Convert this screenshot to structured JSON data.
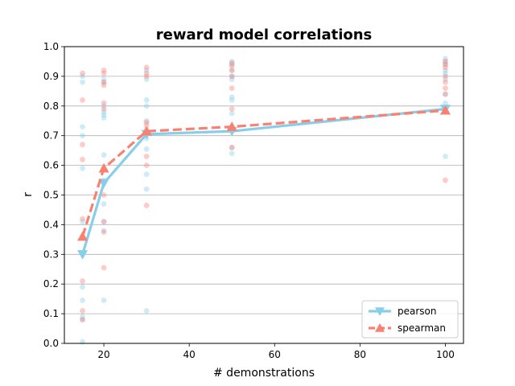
{
  "chart_data": {
    "type": "line",
    "title": "reward model correlations",
    "xlabel": "# demonstrations",
    "ylabel": "r",
    "xlim": [
      10.75,
      104.25
    ],
    "ylim": [
      0,
      1.0
    ],
    "xticks": [
      20,
      40,
      60,
      80,
      100
    ],
    "yticks": [
      0.0,
      0.1,
      0.2,
      0.3,
      0.4,
      0.5,
      0.6,
      0.7,
      0.8,
      0.9,
      1.0
    ],
    "grid": "y",
    "legend_position": "lower-right",
    "x": [
      15,
      20,
      30,
      50,
      100
    ],
    "series": [
      {
        "name": "pearson",
        "color": "#87ceeb",
        "linestyle": "solid",
        "marker": "triangle-down",
        "values": [
          0.3,
          0.54,
          0.705,
          0.715,
          0.79
        ],
        "scatter": [
          [
            15,
            [
              0.005,
              0.08,
              0.09,
              0.145,
              0.19,
              0.41,
              0.59,
              0.7,
              0.73,
              0.88,
              0.9
            ]
          ],
          [
            20,
            [
              0.145,
              0.38,
              0.41,
              0.47,
              0.55,
              0.635,
              0.76,
              0.77,
              0.78,
              0.8,
              0.88,
              0.89
            ]
          ],
          [
            30,
            [
              0.11,
              0.52,
              0.57,
              0.655,
              0.69,
              0.72,
              0.75,
              0.8,
              0.82,
              0.89,
              0.92
            ]
          ],
          [
            50,
            [
              0.64,
              0.66,
              0.775,
              0.82,
              0.83,
              0.89,
              0.9,
              0.92,
              0.94,
              0.95
            ]
          ],
          [
            100,
            [
              0.63,
              0.81,
              0.84,
              0.89,
              0.91,
              0.92,
              0.94,
              0.95,
              0.96
            ]
          ]
        ]
      },
      {
        "name": "spearman",
        "color": "#fa8072",
        "linestyle": "dashed",
        "marker": "triangle-up",
        "values": [
          0.36,
          0.59,
          0.715,
          0.73,
          0.785
        ],
        "scatter": [
          [
            15,
            [
              0.08,
              0.11,
              0.21,
              0.42,
              0.62,
              0.67,
              0.82,
              0.91
            ]
          ],
          [
            20,
            [
              0.255,
              0.375,
              0.41,
              0.5,
              0.59,
              0.79,
              0.81,
              0.87,
              0.88,
              0.91,
              0.92
            ]
          ],
          [
            30,
            [
              0.465,
              0.6,
              0.63,
              0.735,
              0.745,
              0.9,
              0.91,
              0.93
            ]
          ],
          [
            50,
            [
              0.66,
              0.79,
              0.86,
              0.9,
              0.92,
              0.935,
              0.945
            ]
          ],
          [
            100,
            [
              0.55,
              0.84,
              0.86,
              0.88,
              0.9,
              0.93,
              0.94,
              0.95
            ]
          ]
        ]
      }
    ]
  }
}
